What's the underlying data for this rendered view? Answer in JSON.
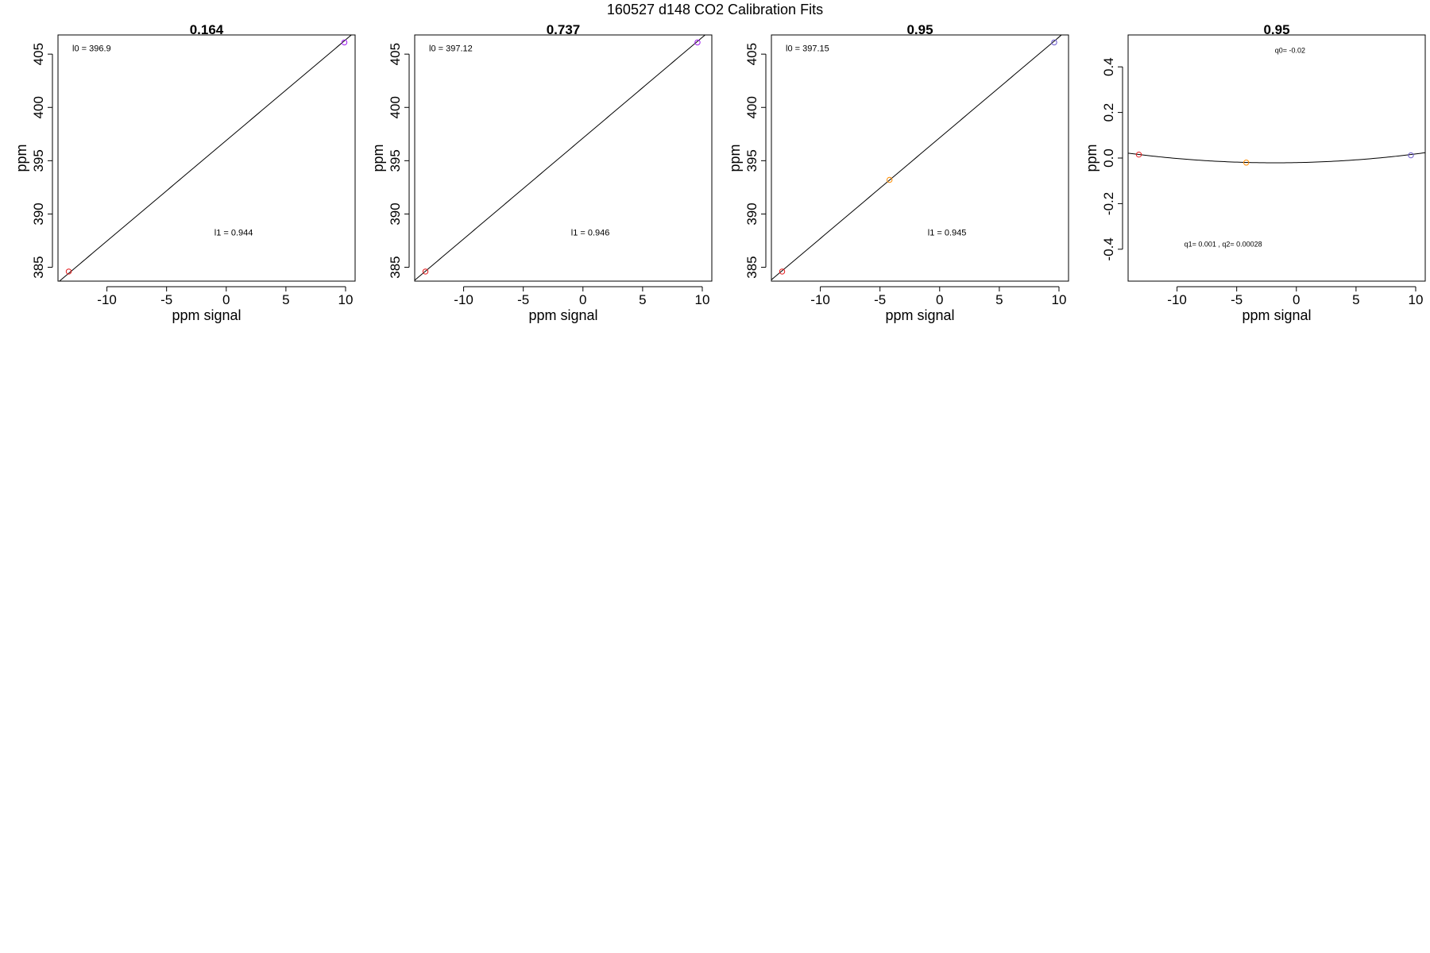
{
  "figure": {
    "title": "160527   d148   CO2 Calibration Fits"
  },
  "chart_data": [
    {
      "type": "scatter",
      "title": "0.164",
      "xlabel": "ppm signal",
      "ylabel": "ppm",
      "xlim": [
        -14.1,
        10.8
      ],
      "ylim": [
        383.7,
        406.8
      ],
      "xticks": [
        -10,
        -5,
        0,
        5,
        10
      ],
      "yticks": [
        385,
        390,
        395,
        400,
        405
      ],
      "grid": false,
      "points": [
        {
          "x": -13.2,
          "y": 384.6,
          "color": "#e41a1c"
        },
        {
          "x": 9.9,
          "y": 406.1,
          "color": "#a020f0"
        }
      ],
      "fit_line": {
        "type": "linear",
        "intercept": 396.9,
        "slope": 0.944
      },
      "annotations": [
        {
          "text": "l0 =  396.9",
          "x": -12.9,
          "y": 405.5
        },
        {
          "text": "l1 =  0.944",
          "x": -1,
          "y": 388.2
        }
      ]
    },
    {
      "type": "scatter",
      "title": "0.737",
      "xlabel": "ppm signal",
      "ylabel": "ppm",
      "xlim": [
        -14.1,
        10.8
      ],
      "ylim": [
        383.7,
        406.8
      ],
      "xticks": [
        -10,
        -5,
        0,
        5,
        10
      ],
      "yticks": [
        385,
        390,
        395,
        400,
        405
      ],
      "grid": false,
      "points": [
        {
          "x": -13.2,
          "y": 384.6,
          "color": "#e41a1c"
        },
        {
          "x": 9.6,
          "y": 406.1,
          "color": "#a020f0"
        }
      ],
      "fit_line": {
        "type": "linear",
        "intercept": 397.12,
        "slope": 0.946
      },
      "annotations": [
        {
          "text": "l0 =  397.12",
          "x": -12.9,
          "y": 405.5
        },
        {
          "text": "l1 =  0.946",
          "x": -1,
          "y": 388.2
        }
      ]
    },
    {
      "type": "scatter",
      "title": "0.95",
      "xlabel": "ppm signal",
      "ylabel": "ppm",
      "xlim": [
        -14.1,
        10.8
      ],
      "ylim": [
        383.7,
        406.8
      ],
      "xticks": [
        -10,
        -5,
        0,
        5,
        10
      ],
      "yticks": [
        385,
        390,
        395,
        400,
        405
      ],
      "grid": false,
      "points": [
        {
          "x": -13.2,
          "y": 384.6,
          "color": "#e41a1c"
        },
        {
          "x": -4.2,
          "y": 393.2,
          "color": "#ff8c00"
        },
        {
          "x": 9.6,
          "y": 406.1,
          "color": "#6a5acd"
        }
      ],
      "fit_line": {
        "type": "linear",
        "intercept": 397.15,
        "slope": 0.945
      },
      "annotations": [
        {
          "text": "l0 =  397.15",
          "x": -12.9,
          "y": 405.5
        },
        {
          "text": "l1 =  0.945",
          "x": -1,
          "y": 388.2
        }
      ]
    },
    {
      "type": "scatter",
      "title": "0.95",
      "xlabel": "ppm signal",
      "ylabel": "ppm",
      "xlim": [
        -14.1,
        10.8
      ],
      "ylim": [
        -0.54,
        0.54
      ],
      "xticks": [
        -10,
        -5,
        0,
        5,
        10
      ],
      "yticks": [
        -0.4,
        -0.2,
        0.0,
        0.2,
        0.4
      ],
      "grid": false,
      "points": [
        {
          "x": -13.2,
          "y": 0.015,
          "color": "#e41a1c"
        },
        {
          "x": -4.2,
          "y": -0.02,
          "color": "#ff8c00"
        },
        {
          "x": 9.6,
          "y": 0.012,
          "color": "#6a5acd"
        }
      ],
      "fit_line": {
        "type": "quadratic",
        "q0": -0.02,
        "q1": 0.001,
        "q2": 0.00028
      },
      "annotations": [
        {
          "text": "q0= -0.02",
          "x": -1.8,
          "y": 0.47,
          "size": "small"
        },
        {
          "text": "q1= 0.001 , q2= 0.00028",
          "x": -9.4,
          "y": -0.38,
          "size": "small"
        }
      ]
    }
  ]
}
